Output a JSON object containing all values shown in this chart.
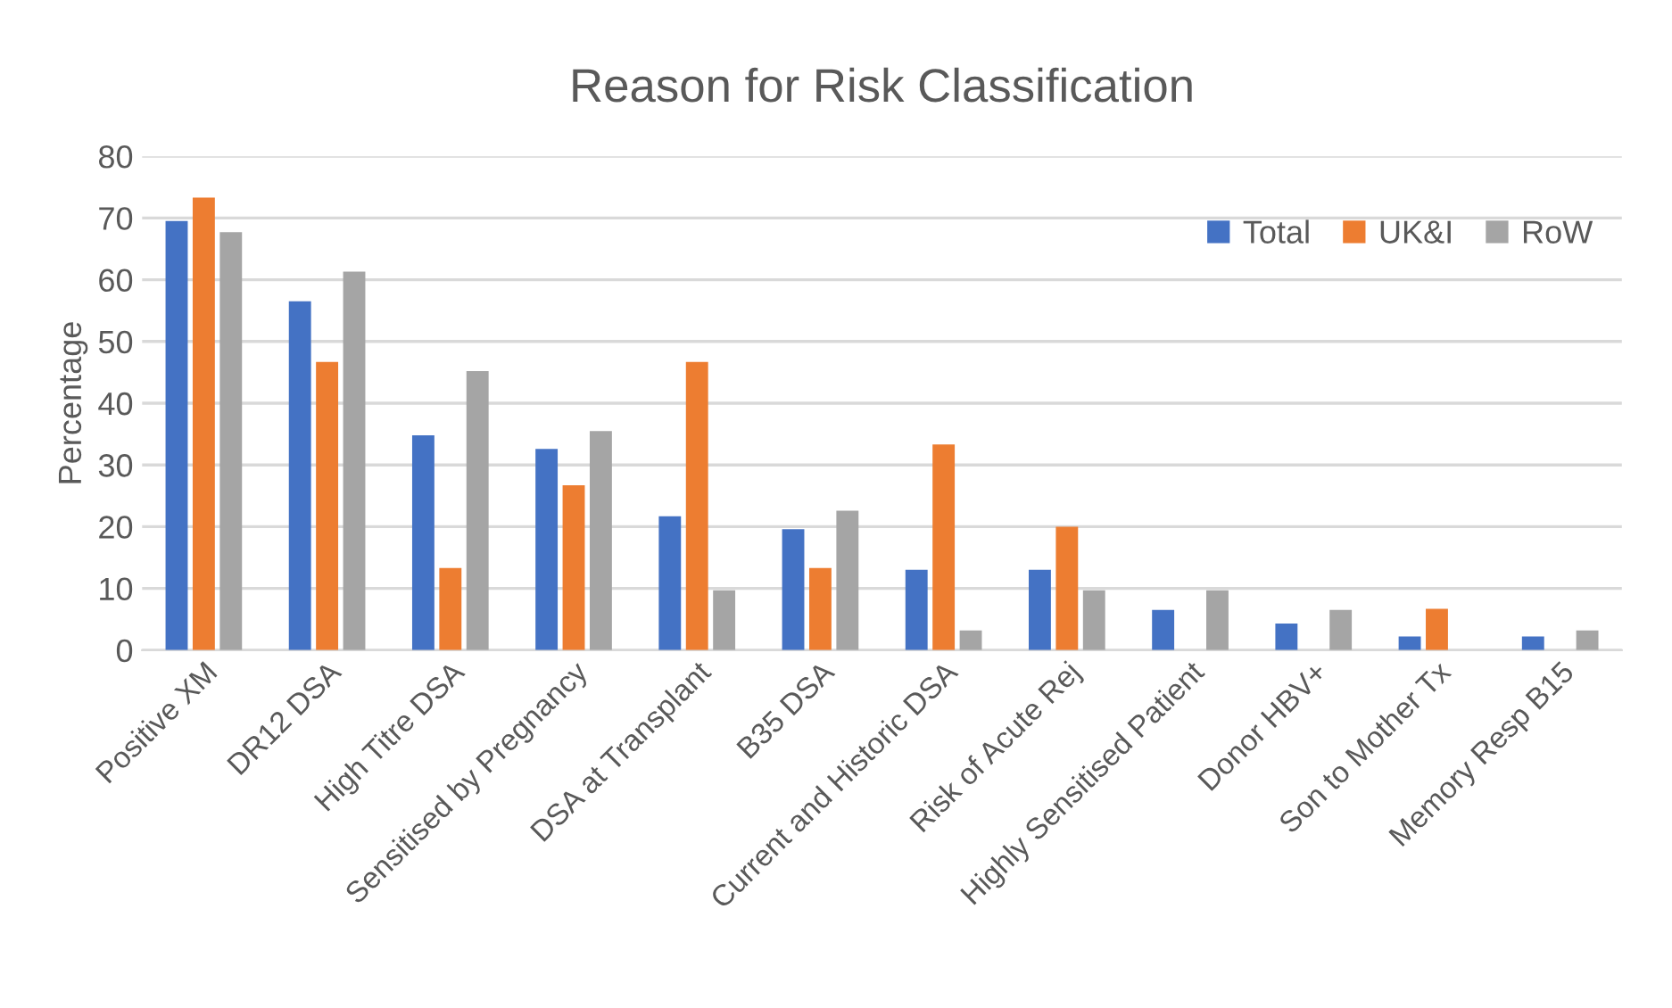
{
  "chart_data": {
    "type": "bar",
    "title": "Reason for Risk Classification",
    "ylabel": "Percentage",
    "categories": [
      "Positive XM",
      "DR12 DSA",
      "High Titre DSA",
      "Sensitised by Pregnancy",
      "DSA at Transplant",
      "B35 DSA",
      "Current and Historic DSA",
      "Risk of Acute Rej",
      "Highly Sensitised Patient",
      "Donor HBV+",
      "Son to Mother Tx",
      "Memory Resp B15"
    ],
    "series": [
      {
        "name": "Total",
        "color": "#4472c4",
        "values": [
          69.5,
          56.5,
          34.8,
          32.6,
          21.7,
          19.6,
          13.0,
          13.0,
          6.5,
          4.3,
          2.2,
          2.2
        ]
      },
      {
        "name": "UK&I",
        "color": "#ed7d31",
        "values": [
          73.3,
          46.7,
          13.3,
          26.7,
          46.7,
          13.3,
          33.3,
          20.0,
          0,
          0,
          6.7,
          0
        ]
      },
      {
        "name": "RoW",
        "color": "#a5a5a5",
        "values": [
          67.7,
          61.3,
          45.2,
          35.5,
          9.7,
          22.6,
          3.2,
          9.7,
          9.7,
          6.5,
          0,
          3.2
        ]
      }
    ],
    "ylim": [
      0,
      80
    ],
    "yticks": [
      0,
      10,
      20,
      30,
      40,
      50,
      60,
      70,
      80
    ],
    "grid": "y",
    "legend": "top right"
  }
}
